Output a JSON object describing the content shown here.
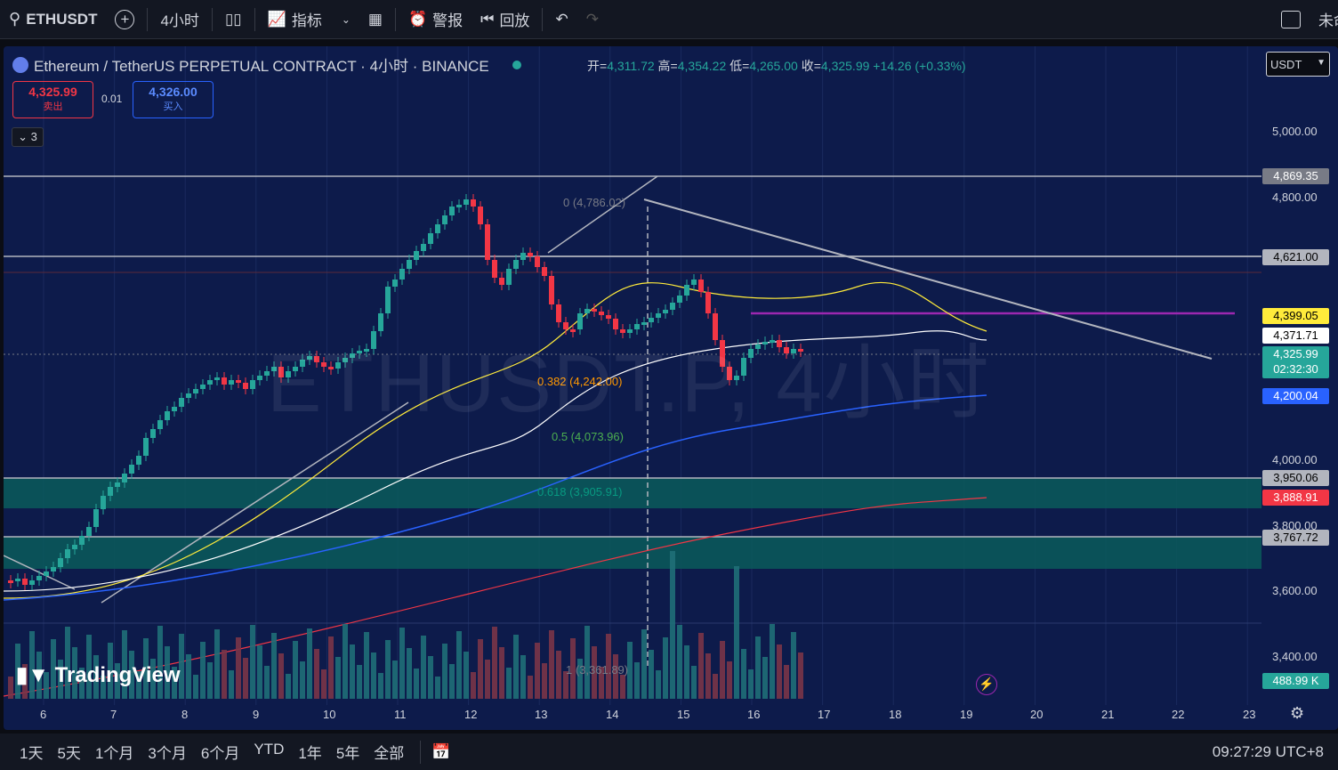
{
  "toolbar": {
    "symbol": "ETHUSDT",
    "interval": "4小时",
    "indicators": "指标",
    "alert": "警报",
    "replay": "回放",
    "right_text": "未命"
  },
  "header": {
    "title": "Ethereum / TetherUS PERPETUAL CONTRACT · 4小时 · BINANCE",
    "open_label": "开=",
    "open": "4,311.72",
    "high_label": "高=",
    "high": "4,354.22",
    "low_label": "低=",
    "low": "4,265.00",
    "close_label": "收=",
    "close": "4,325.99",
    "change": "+14.26 (+0.33%)",
    "sell_price": "4,325.99",
    "sell_label": "卖出",
    "spread": "0.01",
    "buy_price": "4,326.00",
    "buy_label": "买入",
    "collapse_count": "3",
    "currency": "USDT"
  },
  "watermark": "ETHUSDT.P, 4小时",
  "brand": "TradingView",
  "price_axis": [
    "5,000.00",
    "4,800.00",
    "4,000.00",
    "3,800.00",
    "3,600.00",
    "3,400.00"
  ],
  "price_tags": {
    "t1": "4,869.35",
    "t2": "4,621.00",
    "t3": "4,399.05",
    "t4": "4,371.71",
    "t5": "4,325.99",
    "t5b": "02:32:30",
    "t6": "4,200.04",
    "t7": "3,950.06",
    "t8": "3,888.91",
    "t9": "3,767.72",
    "vol": "488.99 K"
  },
  "fib": {
    "f0": "0 (4,786.02)",
    "f382": "0.382 (4,242.00)",
    "f5": "0.5 (4,073.96)",
    "f618": "0.618 (3,905.91)",
    "f1": "1 (3,361.89)"
  },
  "time_axis": [
    "6",
    "7",
    "8",
    "9",
    "10",
    "11",
    "12",
    "13",
    "14",
    "15",
    "16",
    "17",
    "18",
    "19",
    "20",
    "21",
    "22",
    "23"
  ],
  "bottombar": {
    "ranges": [
      "1天",
      "5天",
      "1个月",
      "3个月",
      "6个月",
      "YTD",
      "1年",
      "5年",
      "全部"
    ],
    "clock": "09:27:29 UTC+8"
  },
  "colors": {
    "up": "#26a69a",
    "down": "#f23645",
    "bg": "#0d1b4b",
    "accent": "#9c27b0"
  }
}
